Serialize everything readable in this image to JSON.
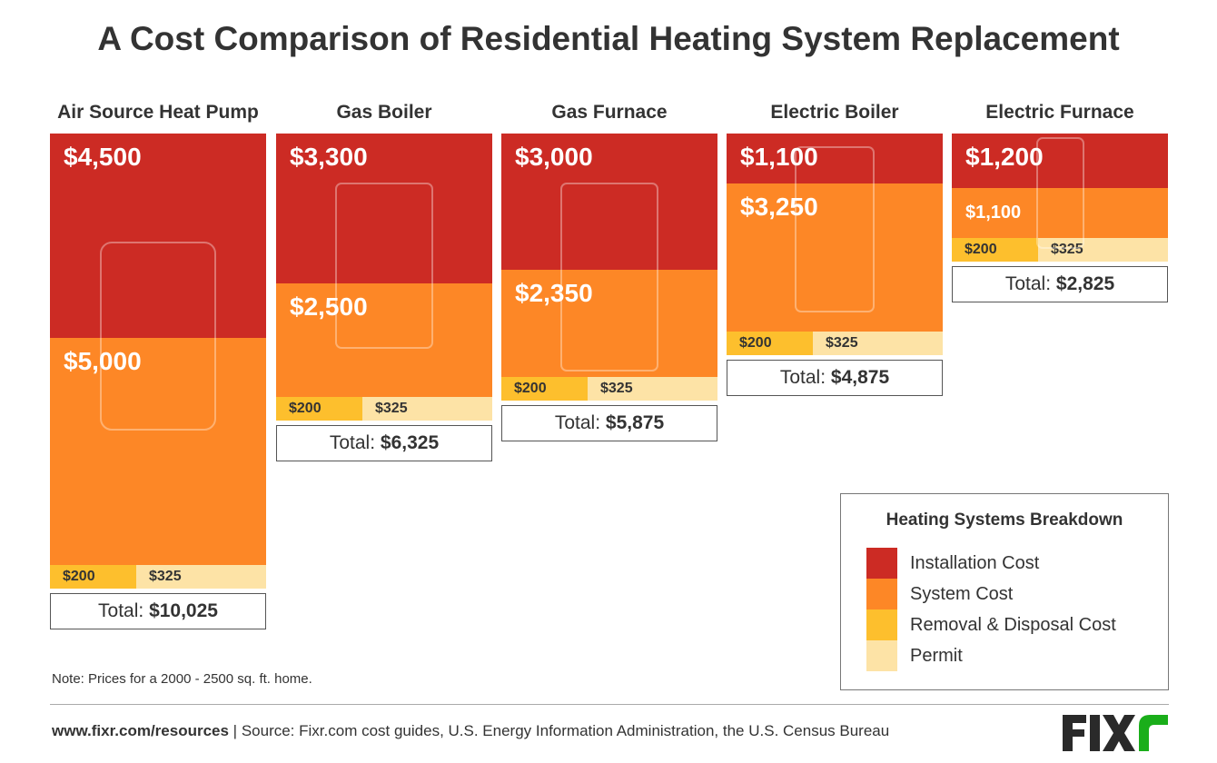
{
  "chart_data": {
    "type": "bar",
    "title": "A Cost Comparison of Residential Heating System Replacement",
    "categories": [
      "Air Source Heat Pump",
      "Gas Boiler",
      "Gas Furnace",
      "Electric Boiler",
      "Electric Furnace"
    ],
    "series": [
      {
        "name": "Installation Cost",
        "color": "#cc2b24",
        "values": [
          4500,
          3300,
          3000,
          1100,
          1200
        ],
        "labels": [
          "$4,500",
          "$3,300",
          "$3,000",
          "$1,100",
          "$1,200"
        ]
      },
      {
        "name": "System Cost",
        "color": "#fd8726",
        "values": [
          5000,
          2500,
          2350,
          3250,
          1100
        ],
        "labels": [
          "$5,000",
          "$2,500",
          "$2,350",
          "$3,250",
          "$1,100"
        ]
      },
      {
        "name": "Removal & Disposal Cost",
        "color": "#fdbf2d",
        "values": [
          200,
          200,
          200,
          200,
          200
        ],
        "labels": [
          "$200",
          "$200",
          "$200",
          "$200",
          "$200"
        ]
      },
      {
        "name": "Permit",
        "color": "#fde3a6",
        "values": [
          325,
          325,
          325,
          325,
          325
        ],
        "labels": [
          "$325",
          "$325",
          "$325",
          "$325",
          "$325"
        ]
      }
    ],
    "totals": [
      "$10,025",
      "$6,325",
      "$5,875",
      "$4,875",
      "$2,825"
    ],
    "total_prefix": "Total:",
    "legend_title": "Heating Systems Breakdown",
    "legend_position": "bottom-right"
  },
  "note": "Note: Prices for a 2000 - 2500 sq. ft. home.",
  "footer": {
    "site": "www.fixr.com/resources",
    "source": " | Source: Fixr.com cost guides, U.S. Energy Information Administration, the U.S. Census Bureau"
  },
  "logo": {
    "text": "FIXR",
    "colors": [
      "#2a2a2a",
      "#1aae1a"
    ]
  }
}
